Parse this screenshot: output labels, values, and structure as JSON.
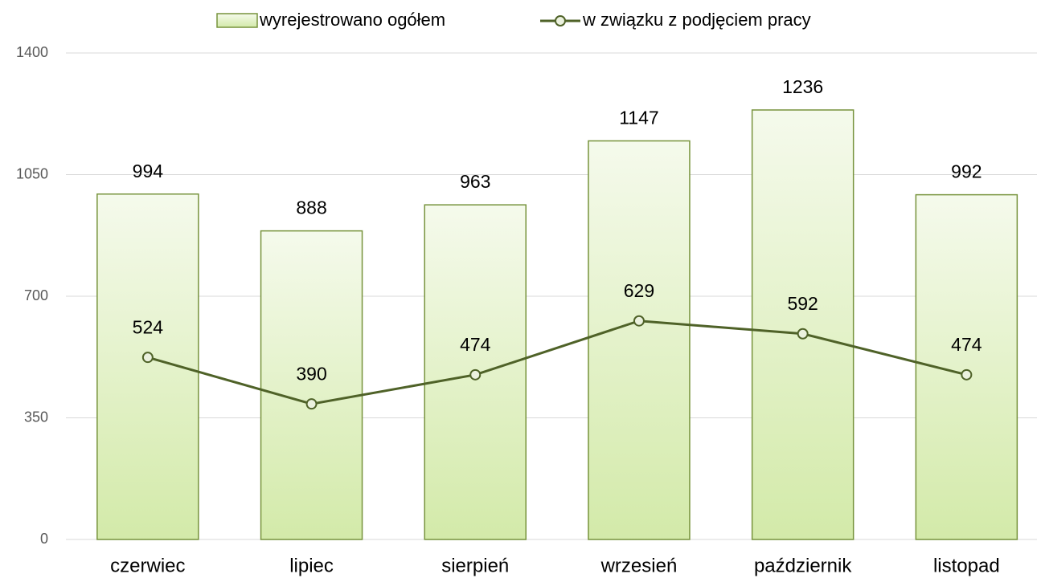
{
  "chart_data": {
    "type": "bar",
    "categories": [
      "czerwiec",
      "lipiec",
      "sierpień",
      "wrzesień",
      "październik",
      "listopad"
    ],
    "series": [
      {
        "name": "wyrejestrowano ogółem",
        "type": "bar",
        "color": "#77933c",
        "values": [
          994,
          888,
          963,
          1147,
          1236,
          992
        ]
      },
      {
        "name": "w związku z podjęciem pracy",
        "type": "line",
        "color": "#4f6228",
        "values": [
          524,
          390,
          474,
          629,
          592,
          474
        ]
      }
    ],
    "ylim": [
      0,
      1400
    ],
    "yticks": [
      0,
      350,
      700,
      1050,
      1400
    ],
    "grid": true,
    "legend": "top"
  }
}
